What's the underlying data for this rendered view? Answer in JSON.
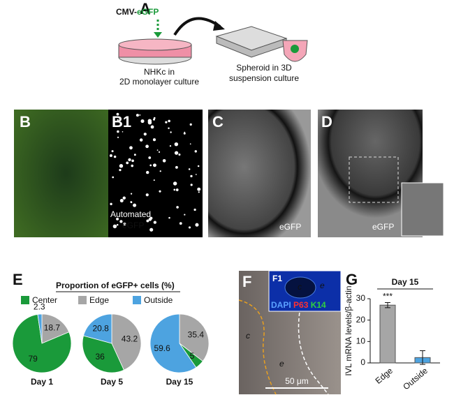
{
  "panel_a": {
    "label": "A",
    "construct_prefix": "CMV-",
    "construct_gene": "eGFP",
    "left_caption": [
      "NHKc in",
      "2D monolayer culture"
    ],
    "right_caption": [
      "Spheroid in 3D",
      "suspension culture"
    ]
  },
  "panel_b": {
    "label": "B",
    "inset_label": "B1",
    "text_lines": [
      "Automated",
      "eGFP"
    ]
  },
  "panel_c": {
    "label": "C",
    "channel": "eGFP"
  },
  "panel_d": {
    "label": "D",
    "channel": "eGFP"
  },
  "panel_e": {
    "label": "E"
  },
  "panel_f": {
    "label": "F",
    "inset_label": "F1",
    "stains": [
      "DAPI",
      "P63",
      "K14"
    ],
    "inset_regions": [
      "c",
      "e"
    ],
    "regions": [
      "c",
      "e"
    ],
    "scale_bar": "50 μm"
  },
  "panel_g": {
    "label": "G"
  },
  "chart_data": [
    {
      "type": "pie",
      "title": "Proportion of eGFP+ cells (%)",
      "categories": [
        "Center",
        "Edge",
        "Outside"
      ],
      "colors": [
        "#1a9a3a",
        "#a6a6a6",
        "#4da3e0"
      ],
      "series": [
        {
          "name": "Day 1",
          "values": [
            79,
            18.7,
            2.3
          ]
        },
        {
          "name": "Day 5",
          "values": [
            36,
            43.2,
            20.8
          ]
        },
        {
          "name": "Day 15",
          "values": [
            5,
            35.4,
            59.6
          ]
        }
      ]
    },
    {
      "type": "bar",
      "title": "Day 15",
      "ylabel": "IVL mRNA levels/β-actin",
      "categories": [
        "Edge",
        "Outside"
      ],
      "values": [
        27,
        2.5
      ],
      "errors": [
        1.2,
        3.2
      ],
      "colors": [
        "#a6a6a6",
        "#4da3e0"
      ],
      "annotation": "***",
      "ylim": [
        0,
        30
      ],
      "yticks": [
        0,
        10,
        20,
        30
      ]
    }
  ]
}
